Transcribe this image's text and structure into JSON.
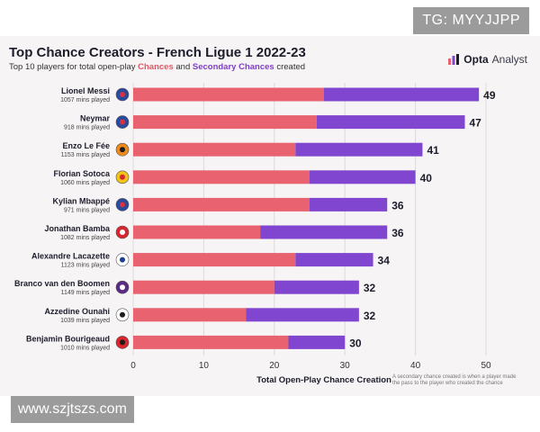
{
  "watermarks": {
    "top": "TG: MYYJJPP",
    "bottom": "www.szjtszs.com"
  },
  "brand": {
    "name": "Opta",
    "suffix": "Analyst"
  },
  "header": {
    "title": "Top Chance Creators - French Ligue 1 2022-23",
    "subtitle_prefix": "Top 10 players for total open-play",
    "subtitle_chances": "Chances",
    "subtitle_and": "and",
    "subtitle_secondary": "Secondary Chances",
    "subtitle_suffix": "created"
  },
  "footnote": "A secondary chance created is when a player made the pass to the player who created the chance",
  "chart_data": {
    "type": "bar",
    "orientation": "horizontal",
    "stacked": true,
    "title": "Top Chance Creators - French Ligue 1 2022-23",
    "xlabel": "Total Open-Play Chance Creation",
    "xlim": [
      0,
      50
    ],
    "xticks": [
      0,
      10,
      20,
      30,
      40,
      50
    ],
    "grid": true,
    "colors": {
      "chances": "#e8636f",
      "secondary": "#8046cf"
    },
    "categories": [
      "Lionel Messi",
      "Neymar",
      "Enzo Le Fée",
      "Florian Sotoca",
      "Kylian Mbappé",
      "Jonathan Bamba",
      "Alexandre Lacazette",
      "Branco van den Boomen",
      "Azzedine Ounahi",
      "Benjamin Bourigeaud"
    ],
    "minutes": [
      "1057 mins played",
      "918 mins played",
      "1153 mins played",
      "1060 mins played",
      "971 mins played",
      "1082 mins played",
      "1123 mins played",
      "1149 mins played",
      "1039 mins played",
      "1010 mins played"
    ],
    "series": [
      {
        "name": "Chances",
        "values": [
          27,
          26,
          23,
          25,
          25,
          18,
          23,
          20,
          16,
          22
        ]
      },
      {
        "name": "Secondary Chances",
        "values": [
          22,
          21,
          18,
          15,
          11,
          18,
          11,
          12,
          16,
          8
        ]
      }
    ],
    "totals": [
      49,
      47,
      41,
      40,
      36,
      36,
      34,
      32,
      32,
      30
    ],
    "club_badges": [
      "psg-badge-icon",
      "psg-badge-icon",
      "lorient-badge-icon",
      "lens-badge-icon",
      "psg-badge-icon",
      "lille-badge-icon",
      "lyon-badge-icon",
      "toulouse-badge-icon",
      "angers-badge-icon",
      "rennes-badge-icon"
    ]
  }
}
